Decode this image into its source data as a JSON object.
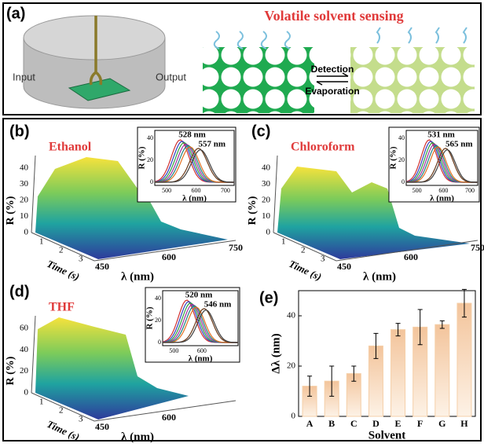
{
  "panel_a": {
    "label": "(a)",
    "title": "Volatile solvent sensing",
    "input": "Input",
    "output": "Output",
    "detection": "Detection",
    "evaporation": "Evaporation"
  },
  "panels": [
    {
      "label": "(b)",
      "solvent": "Ethanol",
      "z_axis": "R (%)",
      "zticks": [
        0,
        10,
        20,
        30,
        40
      ],
      "time_axis": "Time (s)",
      "time_ticks": [
        1,
        2,
        3
      ],
      "wl_axis": "λ (nm)",
      "wl_ticks": [
        450,
        600,
        750
      ],
      "inset": {
        "peaks": [
          "528 nm",
          "557 nm"
        ],
        "y_axis": "R (%)",
        "x_axis": "λ (nm)",
        "yticks": [
          0,
          20,
          40
        ],
        "xticks": [
          500,
          600,
          700
        ]
      }
    },
    {
      "label": "(c)",
      "solvent": "Chloroform",
      "z_axis": "R (%)",
      "zticks": [
        0,
        10,
        20,
        30,
        40
      ],
      "time_axis": "Time (s)",
      "time_ticks": [
        1,
        2,
        3
      ],
      "wl_axis": "λ (nm)",
      "wl_ticks": [
        450,
        600,
        750
      ],
      "inset": {
        "peaks": [
          "531 nm",
          "565 nm"
        ],
        "y_axis": "R (%)",
        "x_axis": "λ (nm)",
        "yticks": [
          0,
          20,
          40
        ],
        "xticks": [
          500,
          600,
          700
        ]
      }
    },
    {
      "label": "(d)",
      "solvent": "THF",
      "z_axis": "R (%)",
      "zticks": [
        0,
        20,
        40,
        60
      ],
      "time_axis": "Time (s)",
      "time_ticks": [
        1,
        2,
        3
      ],
      "wl_axis": "λ (nm)",
      "wl_ticks": [
        450,
        600
      ],
      "inset": {
        "peaks": [
          "520 nm",
          "546 nm"
        ],
        "y_axis": "R (%)",
        "x_axis": "λ (nm)",
        "yticks": [
          0,
          20,
          40
        ],
        "xticks": [
          500,
          600
        ]
      }
    }
  ],
  "chart_data": {
    "type": "bar",
    "label": "(e)",
    "x_label": "Solvent",
    "y_label": "Δλ (nm)",
    "categories": [
      "A",
      "B",
      "C",
      "D",
      "E",
      "F",
      "G",
      "H"
    ],
    "values": [
      12,
      14,
      17,
      28,
      34.5,
      35.5,
      36.5,
      45
    ],
    "errors": [
      4,
      6,
      3,
      5,
      2.5,
      7,
      1.5,
      5.5
    ],
    "color": "#f5cfa8",
    "ylim": [
      0,
      50
    ],
    "yticks": [
      0,
      20,
      40
    ]
  }
}
